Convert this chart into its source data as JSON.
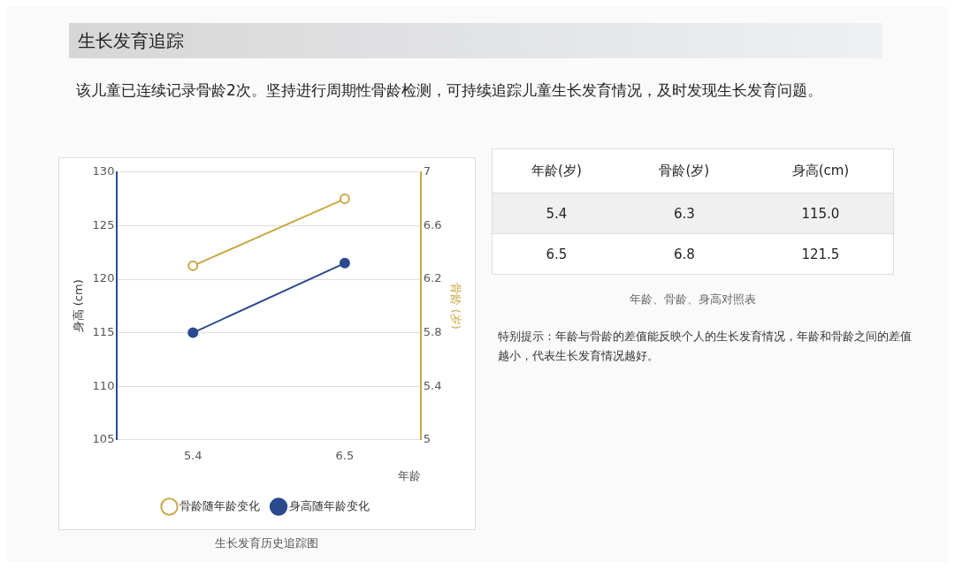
{
  "chart_data": [
    {
      "type": "line",
      "title": "生长发育追踪",
      "subtitle": "该儿童已连续记录骨龄2次。坚持进行周期性骨龄检测，可持续追踪儿童生长发育情况，及时发现生长发育问题。",
      "categories": [
        "5.4",
        "6.5"
      ],
      "xlabel": "年龄",
      "ylabel": "身高 (cm)",
      "y2label": "骨龄 (岁)",
      "series": [
        {
          "name": "骨龄随年龄变化",
          "color": "#c9a846",
          "axis": "y2",
          "values": [
            6.3,
            6.8
          ]
        },
        {
          "name": "身高随年龄变化",
          "color": "#2b4a8e",
          "values": [
            115.0,
            121.5
          ]
        }
      ],
      "ylim": [
        105,
        130
      ],
      "yticks": [
        105,
        110,
        115,
        120,
        125,
        130
      ],
      "y2lim": [
        5,
        7
      ],
      "y2ticks": [
        5,
        5.4,
        5.8,
        6.2,
        6.6,
        7
      ],
      "grid": "y",
      "legend": "bottom",
      "marker": "circle",
      "line_style": "solid",
      "annotations": [
        "生长发育历史追踪图"
      ]
    },
    {
      "type": "other",
      "categories": [
        "年龄(岁)",
        "骨龄(岁)",
        "身高(cm)"
      ],
      "cells": [
        [
          "5.4",
          "6.3",
          "115.0"
        ],
        [
          "6.5",
          "6.8",
          "121.5"
        ]
      ],
      "annotations": [
        "年龄、骨龄、身高对照表",
        "特别提示：年龄与骨龄的差值能反映个人的生长发育情况，年龄和骨龄之间的差值越小，代表生长发育情况越好。"
      ]
    }
  ]
}
